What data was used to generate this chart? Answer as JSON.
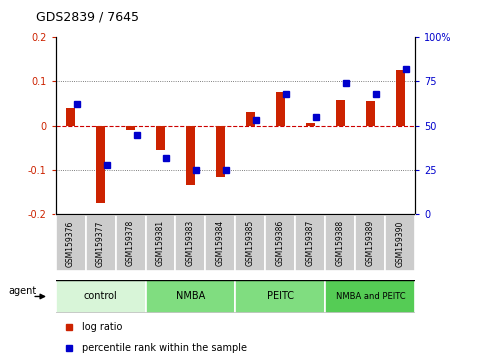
{
  "title": "GDS2839 / 7645",
  "samples": [
    "GSM159376",
    "GSM159377",
    "GSM159378",
    "GSM159381",
    "GSM159383",
    "GSM159384",
    "GSM159385",
    "GSM159386",
    "GSM159387",
    "GSM159388",
    "GSM159389",
    "GSM159390"
  ],
  "log_ratio": [
    0.04,
    -0.175,
    -0.01,
    -0.055,
    -0.135,
    -0.115,
    0.03,
    0.075,
    0.005,
    0.058,
    0.055,
    0.125
  ],
  "percentile_rank": [
    62,
    28,
    45,
    32,
    25,
    25,
    53,
    68,
    55,
    74,
    68,
    82
  ],
  "group_configs": [
    [
      0,
      3,
      "control",
      "#d8f5d8"
    ],
    [
      3,
      6,
      "NMBA",
      "#80dd80"
    ],
    [
      6,
      9,
      "PEITC",
      "#80dd80"
    ],
    [
      9,
      12,
      "NMBA and PEITC",
      "#55cc55"
    ]
  ],
  "ylim_left": [
    -0.2,
    0.2
  ],
  "ylim_right": [
    0,
    100
  ],
  "bar_color": "#cc2200",
  "square_color": "#0000cc",
  "zero_line_color": "#cc0000",
  "dotted_line_color": "#555555",
  "background_color": "#ffffff",
  "agent_label": "agent",
  "legend_items": [
    "log ratio",
    "percentile rank within the sample"
  ],
  "right_ytick_labels": [
    "0",
    "25",
    "50",
    "75",
    "100%"
  ],
  "left_ytick_labels": [
    "-0.2",
    "-0.1",
    "0",
    "0.1",
    "0.2"
  ]
}
